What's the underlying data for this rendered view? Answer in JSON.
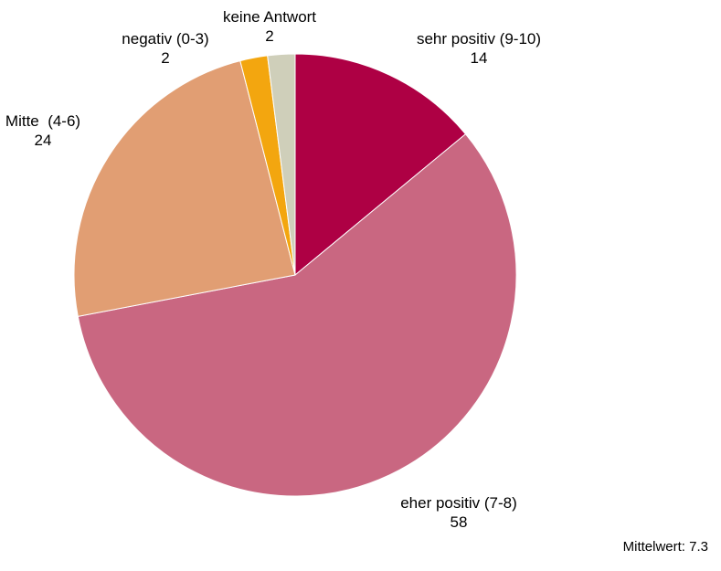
{
  "chart_data": {
    "type": "pie",
    "slices": [
      {
        "label": "sehr positiv (9-10)",
        "value": 14,
        "color": "#ae0044"
      },
      {
        "label": "eher positiv (7-8)",
        "value": 58,
        "color": "#c96781"
      },
      {
        "label": "Mitte  (4-6)",
        "value": 24,
        "color": "#e19e73"
      },
      {
        "label": "negativ (0-3)",
        "value": 2,
        "color": "#f3a60f"
      },
      {
        "label": "keine Antwort",
        "value": 2,
        "color": "#cfcfba"
      }
    ],
    "start_angle_deg": 0,
    "direction": "clockwise",
    "legend": "none"
  },
  "note": {
    "mean_label": "Mittelwert:",
    "mean_value": "7.3"
  }
}
